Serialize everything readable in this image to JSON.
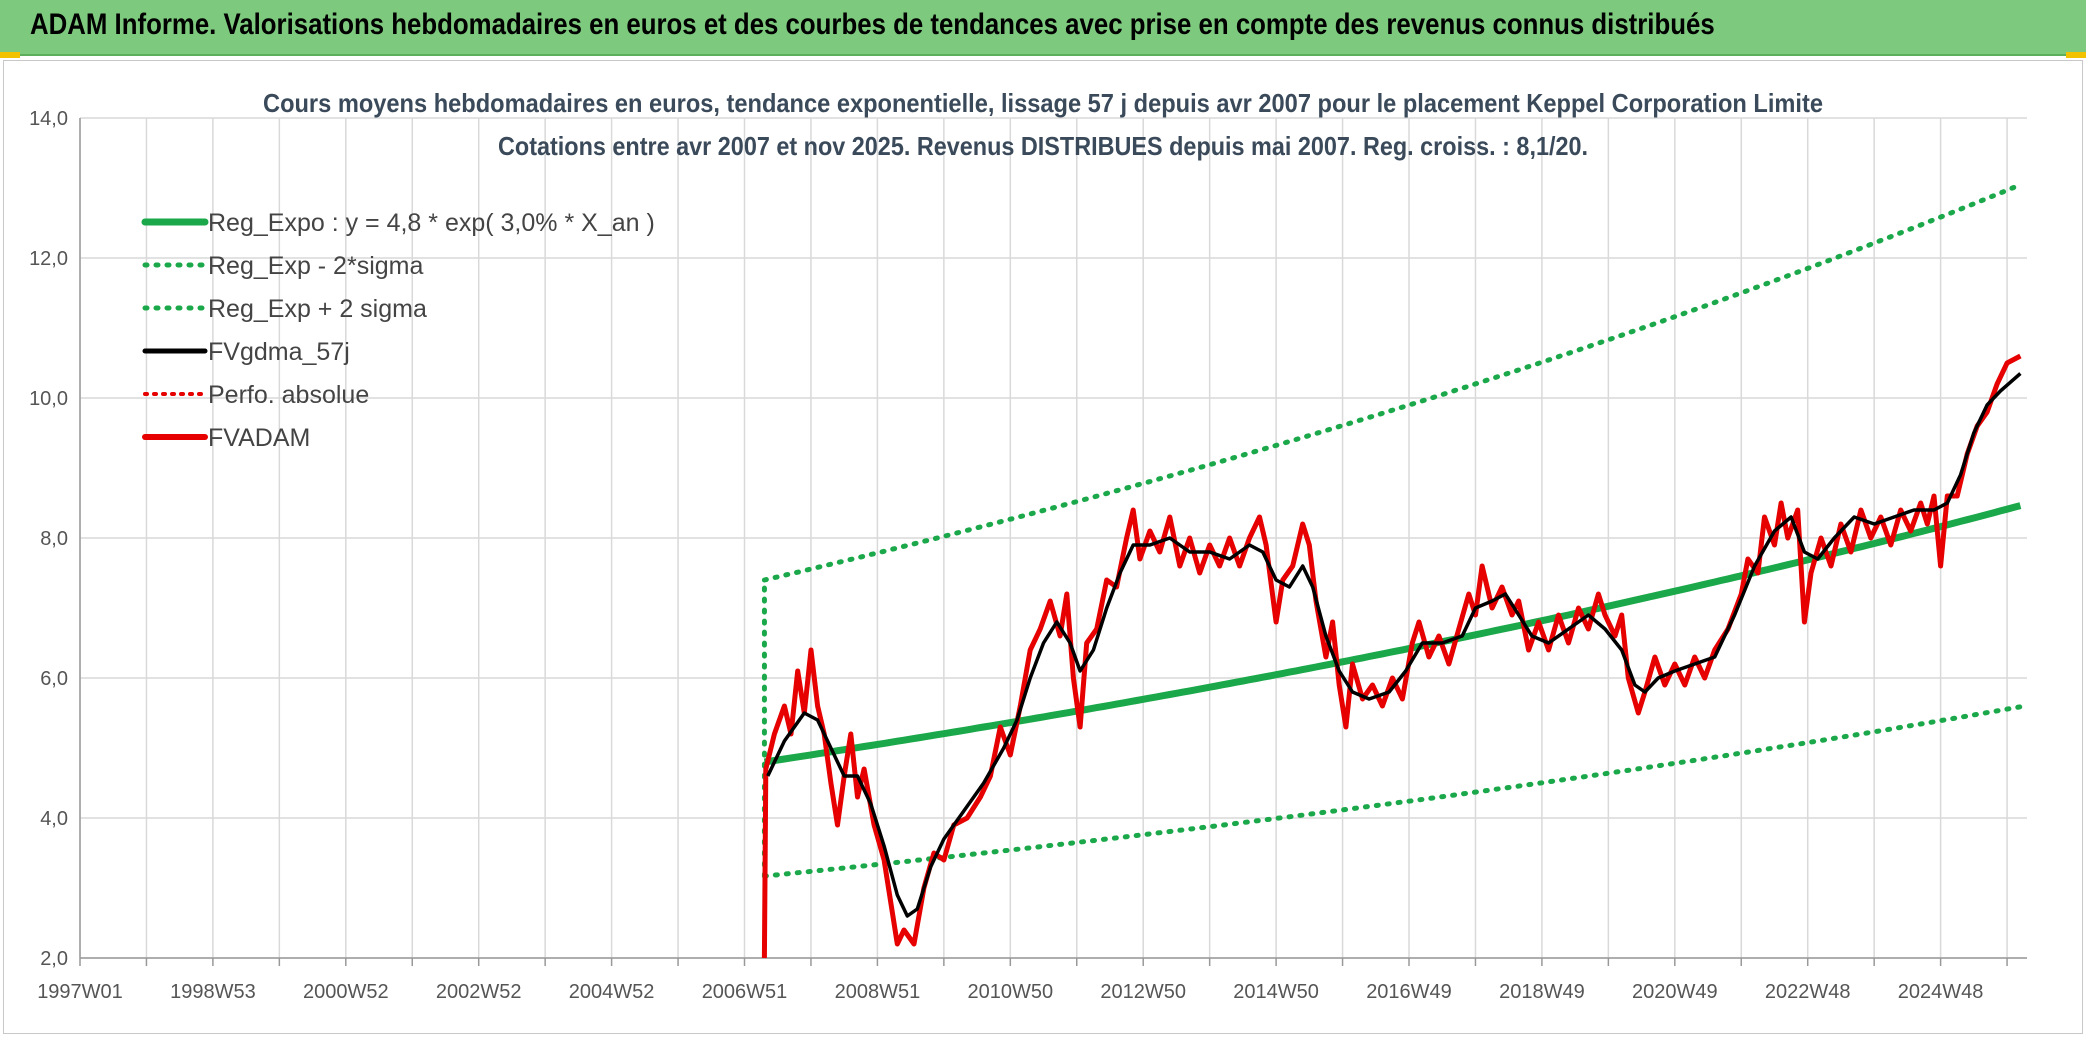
{
  "header": {
    "title": "ADAM Informe. Valorisations hebdomadaires en euros et des courbes de tendances avec prise en compte des revenus connus distribués"
  },
  "colors": {
    "header_bg": "#7dc97d",
    "trend": "#1aa84a",
    "fv_black": "#000000",
    "fvadam_red": "#e60000",
    "grid": "#d9d9d9"
  },
  "chart_data": {
    "type": "line",
    "title": "Cours moyens hebdomadaires en euros, tendance exponentielle, lissage 57 j depuis avr 2007 pour le placement Keppel Corporation Limite",
    "subtitle": "Cotations entre avr 2007 et nov 2025. Revenus DISTRIBUES depuis mai 2007. Reg. croiss. : 8,1/20.",
    "ylim": [
      2.0,
      14.0
    ],
    "y_ticks": [
      "14,0",
      "12,0",
      "10,0",
      "8,0",
      "6,0",
      "4,0",
      "2,0"
    ],
    "x_range": [
      1997.0,
      2026.3
    ],
    "x_tick_labels": [
      "1997W01",
      "1998W53",
      "2000W52",
      "2002W52",
      "2004W52",
      "2006W51",
      "2008W51",
      "2010W50",
      "2012W50",
      "2014W50",
      "2016W49",
      "2018W49",
      "2020W49",
      "2022W48",
      "2024W48"
    ],
    "grid": true,
    "legend_position": "top-left",
    "series": [
      {
        "name": "Reg_Expo : y = 4,8 * exp( 3,0% *  X_an )",
        "style": "solid-thick",
        "color": "#1aa84a",
        "x": [
          2007.3,
          2026.2
        ],
        "formula": "4.8*exp(0.03*(x-2007.3))"
      },
      {
        "name": "Reg_Exp - 2*sigma",
        "style": "dotted",
        "color": "#1aa84a",
        "x": [
          2007.3,
          2026.2
        ],
        "formula": "3.17*exp(0.03*(x-2007.3))"
      },
      {
        "name": "Reg_Exp + 2 sigma",
        "style": "dotted",
        "color": "#1aa84a",
        "x": [
          2007.3,
          2026.2
        ],
        "formula": "7.4*exp(0.03*(x-2007.3))"
      },
      {
        "name": "FVgdma_57j",
        "style": "solid",
        "color": "#000000",
        "points": [
          [
            2007.35,
            4.6
          ],
          [
            2007.6,
            5.1
          ],
          [
            2007.9,
            5.5
          ],
          [
            2008.1,
            5.4
          ],
          [
            2008.3,
            5.0
          ],
          [
            2008.5,
            4.6
          ],
          [
            2008.7,
            4.6
          ],
          [
            2008.9,
            4.2
          ],
          [
            2009.1,
            3.6
          ],
          [
            2009.3,
            2.9
          ],
          [
            2009.45,
            2.6
          ],
          [
            2009.6,
            2.7
          ],
          [
            2009.8,
            3.3
          ],
          [
            2010.0,
            3.7
          ],
          [
            2010.3,
            4.1
          ],
          [
            2010.6,
            4.5
          ],
          [
            2010.9,
            5.0
          ],
          [
            2011.1,
            5.4
          ],
          [
            2011.3,
            6.0
          ],
          [
            2011.5,
            6.5
          ],
          [
            2011.7,
            6.8
          ],
          [
            2011.9,
            6.5
          ],
          [
            2012.05,
            6.1
          ],
          [
            2012.25,
            6.4
          ],
          [
            2012.45,
            7.0
          ],
          [
            2012.65,
            7.5
          ],
          [
            2012.85,
            7.9
          ],
          [
            2013.1,
            7.9
          ],
          [
            2013.4,
            8.0
          ],
          [
            2013.7,
            7.8
          ],
          [
            2014.0,
            7.8
          ],
          [
            2014.3,
            7.7
          ],
          [
            2014.6,
            7.9
          ],
          [
            2014.8,
            7.8
          ],
          [
            2015.0,
            7.4
          ],
          [
            2015.2,
            7.3
          ],
          [
            2015.4,
            7.6
          ],
          [
            2015.55,
            7.3
          ],
          [
            2015.75,
            6.6
          ],
          [
            2015.95,
            6.1
          ],
          [
            2016.15,
            5.8
          ],
          [
            2016.4,
            5.7
          ],
          [
            2016.7,
            5.8
          ],
          [
            2016.95,
            6.1
          ],
          [
            2017.2,
            6.5
          ],
          [
            2017.5,
            6.5
          ],
          [
            2017.8,
            6.6
          ],
          [
            2018.0,
            7.0
          ],
          [
            2018.25,
            7.1
          ],
          [
            2018.45,
            7.2
          ],
          [
            2018.65,
            6.9
          ],
          [
            2018.85,
            6.6
          ],
          [
            2019.1,
            6.5
          ],
          [
            2019.4,
            6.7
          ],
          [
            2019.7,
            6.9
          ],
          [
            2019.95,
            6.7
          ],
          [
            2020.2,
            6.4
          ],
          [
            2020.4,
            5.9
          ],
          [
            2020.55,
            5.8
          ],
          [
            2020.75,
            6.0
          ],
          [
            2021.0,
            6.1
          ],
          [
            2021.3,
            6.2
          ],
          [
            2021.6,
            6.3
          ],
          [
            2021.9,
            6.9
          ],
          [
            2022.2,
            7.6
          ],
          [
            2022.5,
            8.1
          ],
          [
            2022.75,
            8.3
          ],
          [
            2022.95,
            7.8
          ],
          [
            2023.15,
            7.7
          ],
          [
            2023.4,
            8.0
          ],
          [
            2023.7,
            8.3
          ],
          [
            2024.0,
            8.2
          ],
          [
            2024.3,
            8.3
          ],
          [
            2024.6,
            8.4
          ],
          [
            2024.9,
            8.4
          ],
          [
            2025.1,
            8.5
          ],
          [
            2025.3,
            8.9
          ],
          [
            2025.5,
            9.5
          ],
          [
            2025.7,
            9.9
          ],
          [
            2025.9,
            10.1
          ],
          [
            2026.2,
            10.35
          ]
        ]
      },
      {
        "name": "Perfo. absolue",
        "style": "dotted",
        "color": "#e60000",
        "points": []
      },
      {
        "name": "FVADAM",
        "style": "solid-thick",
        "color": "#e60000",
        "points": [
          [
            2007.3,
            2.0
          ],
          [
            2007.32,
            4.7
          ],
          [
            2007.45,
            5.2
          ],
          [
            2007.6,
            5.6
          ],
          [
            2007.7,
            5.2
          ],
          [
            2007.8,
            6.1
          ],
          [
            2007.9,
            5.5
          ],
          [
            2008.0,
            6.4
          ],
          [
            2008.1,
            5.6
          ],
          [
            2008.2,
            5.2
          ],
          [
            2008.3,
            4.5
          ],
          [
            2008.4,
            3.9
          ],
          [
            2008.5,
            4.6
          ],
          [
            2008.6,
            5.2
          ],
          [
            2008.7,
            4.3
          ],
          [
            2008.8,
            4.7
          ],
          [
            2008.95,
            3.9
          ],
          [
            2009.1,
            3.4
          ],
          [
            2009.2,
            2.8
          ],
          [
            2009.3,
            2.2
          ],
          [
            2009.4,
            2.4
          ],
          [
            2009.55,
            2.2
          ],
          [
            2009.7,
            3.0
          ],
          [
            2009.85,
            3.5
          ],
          [
            2010.0,
            3.4
          ],
          [
            2010.15,
            3.9
          ],
          [
            2010.35,
            4.0
          ],
          [
            2010.55,
            4.3
          ],
          [
            2010.7,
            4.6
          ],
          [
            2010.85,
            5.3
          ],
          [
            2011.0,
            4.9
          ],
          [
            2011.15,
            5.6
          ],
          [
            2011.3,
            6.4
          ],
          [
            2011.45,
            6.7
          ],
          [
            2011.6,
            7.1
          ],
          [
            2011.75,
            6.6
          ],
          [
            2011.85,
            7.2
          ],
          [
            2011.95,
            6.0
          ],
          [
            2012.05,
            5.3
          ],
          [
            2012.15,
            6.5
          ],
          [
            2012.3,
            6.7
          ],
          [
            2012.45,
            7.4
          ],
          [
            2012.6,
            7.3
          ],
          [
            2012.75,
            8.0
          ],
          [
            2012.85,
            8.4
          ],
          [
            2012.95,
            7.7
          ],
          [
            2013.1,
            8.1
          ],
          [
            2013.25,
            7.8
          ],
          [
            2013.4,
            8.3
          ],
          [
            2013.55,
            7.6
          ],
          [
            2013.7,
            8.0
          ],
          [
            2013.85,
            7.5
          ],
          [
            2014.0,
            7.9
          ],
          [
            2014.15,
            7.6
          ],
          [
            2014.3,
            8.0
          ],
          [
            2014.45,
            7.6
          ],
          [
            2014.6,
            8.0
          ],
          [
            2014.75,
            8.3
          ],
          [
            2014.85,
            7.9
          ],
          [
            2015.0,
            6.8
          ],
          [
            2015.1,
            7.4
          ],
          [
            2015.25,
            7.6
          ],
          [
            2015.4,
            8.2
          ],
          [
            2015.5,
            7.9
          ],
          [
            2015.6,
            7.1
          ],
          [
            2015.75,
            6.3
          ],
          [
            2015.85,
            6.8
          ],
          [
            2015.95,
            5.9
          ],
          [
            2016.05,
            5.3
          ],
          [
            2016.15,
            6.2
          ],
          [
            2016.3,
            5.7
          ],
          [
            2016.45,
            5.9
          ],
          [
            2016.6,
            5.6
          ],
          [
            2016.75,
            6.0
          ],
          [
            2016.9,
            5.7
          ],
          [
            2017.05,
            6.5
          ],
          [
            2017.15,
            6.8
          ],
          [
            2017.3,
            6.3
          ],
          [
            2017.45,
            6.6
          ],
          [
            2017.6,
            6.2
          ],
          [
            2017.75,
            6.7
          ],
          [
            2017.9,
            7.2
          ],
          [
            2018.0,
            6.9
          ],
          [
            2018.1,
            7.6
          ],
          [
            2018.25,
            7.0
          ],
          [
            2018.4,
            7.3
          ],
          [
            2018.55,
            6.9
          ],
          [
            2018.65,
            7.1
          ],
          [
            2018.8,
            6.4
          ],
          [
            2018.95,
            6.8
          ],
          [
            2019.1,
            6.4
          ],
          [
            2019.25,
            6.9
          ],
          [
            2019.4,
            6.5
          ],
          [
            2019.55,
            7.0
          ],
          [
            2019.7,
            6.7
          ],
          [
            2019.85,
            7.2
          ],
          [
            2019.95,
            6.9
          ],
          [
            2020.1,
            6.6
          ],
          [
            2020.2,
            6.9
          ],
          [
            2020.3,
            6.0
          ],
          [
            2020.45,
            5.5
          ],
          [
            2020.55,
            5.8
          ],
          [
            2020.7,
            6.3
          ],
          [
            2020.85,
            5.9
          ],
          [
            2021.0,
            6.2
          ],
          [
            2021.15,
            5.9
          ],
          [
            2021.3,
            6.3
          ],
          [
            2021.45,
            6.0
          ],
          [
            2021.6,
            6.4
          ],
          [
            2021.8,
            6.7
          ],
          [
            2022.0,
            7.2
          ],
          [
            2022.1,
            7.7
          ],
          [
            2022.25,
            7.5
          ],
          [
            2022.35,
            8.3
          ],
          [
            2022.5,
            7.9
          ],
          [
            2022.6,
            8.5
          ],
          [
            2022.7,
            8.0
          ],
          [
            2022.85,
            8.4
          ],
          [
            2022.95,
            6.8
          ],
          [
            2023.05,
            7.5
          ],
          [
            2023.2,
            8.0
          ],
          [
            2023.35,
            7.6
          ],
          [
            2023.5,
            8.2
          ],
          [
            2023.65,
            7.8
          ],
          [
            2023.8,
            8.4
          ],
          [
            2023.95,
            8.0
          ],
          [
            2024.1,
            8.3
          ],
          [
            2024.25,
            7.9
          ],
          [
            2024.4,
            8.4
          ],
          [
            2024.55,
            8.1
          ],
          [
            2024.7,
            8.5
          ],
          [
            2024.8,
            8.2
          ],
          [
            2024.9,
            8.6
          ],
          [
            2025.0,
            7.6
          ],
          [
            2025.1,
            8.6
          ],
          [
            2025.25,
            8.6
          ],
          [
            2025.4,
            9.2
          ],
          [
            2025.55,
            9.6
          ],
          [
            2025.7,
            9.8
          ],
          [
            2025.85,
            10.2
          ],
          [
            2026.0,
            10.5
          ],
          [
            2026.2,
            10.6
          ]
        ]
      }
    ]
  }
}
